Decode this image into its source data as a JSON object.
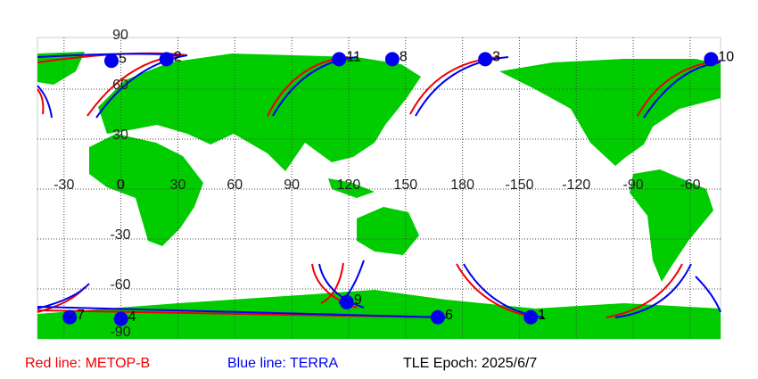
{
  "map": {
    "lon_ticks": [
      -30,
      0,
      30,
      60,
      90,
      120,
      150,
      180,
      {
        "value": 210,
        "label": "-150"
      },
      {
        "value": 240,
        "label": "-120"
      },
      {
        "value": 270,
        "label": "-90"
      },
      {
        "value": 300,
        "label": "-60"
      }
    ],
    "lat_ticks": [
      90,
      60,
      30,
      0,
      -30,
      -60,
      -90
    ],
    "markers": [
      {
        "label": "1",
        "lon": -144,
        "lat": -77
      },
      {
        "label": "2",
        "lon": 24,
        "lat": 78
      },
      {
        "label": "3",
        "lon": -168,
        "lat": 78
      },
      {
        "label": "4",
        "lon": 0,
        "lat": -78
      },
      {
        "label": "5",
        "lon": -5,
        "lat": 77
      },
      {
        "label": "6",
        "lon": 167,
        "lat": -77
      },
      {
        "label": "7",
        "lon": -27,
        "lat": -77
      },
      {
        "label": "8",
        "lon": 143,
        "lat": 78
      },
      {
        "label": "9",
        "lon": 119,
        "lat": -68
      },
      {
        "label": "10",
        "lon": -49,
        "lat": 78
      },
      {
        "label": "11",
        "lon": 115,
        "lat": 78
      }
    ],
    "legend": {
      "red": "Red line: METOP-B",
      "blue": "Blue line: TERRA",
      "epoch": "TLE Epoch: 2025/6/7"
    }
  }
}
